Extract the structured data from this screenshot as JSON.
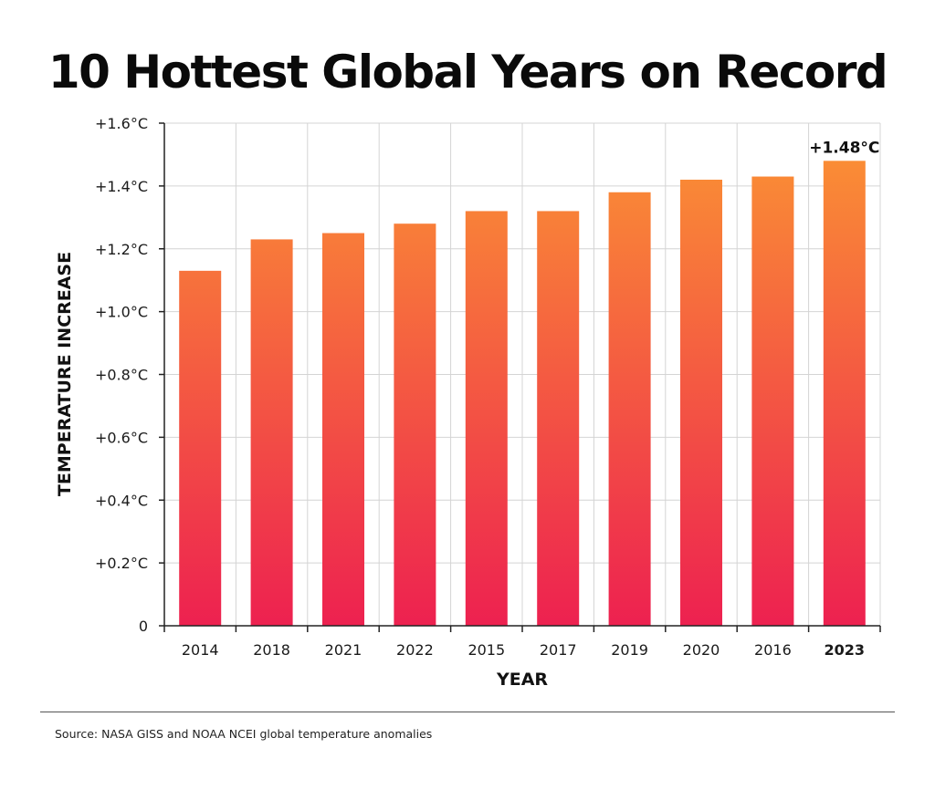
{
  "chart_data": {
    "type": "bar",
    "title": "10 Hottest Global Years on Record",
    "xlabel": "YEAR",
    "ylabel": "TEMPERATURE INCREASE",
    "categories": [
      "2014",
      "2018",
      "2021",
      "2022",
      "2015",
      "2017",
      "2019",
      "2020",
      "2016",
      "2023"
    ],
    "values": [
      1.13,
      1.23,
      1.25,
      1.28,
      1.32,
      1.32,
      1.38,
      1.42,
      1.43,
      1.48
    ],
    "highlight_category": "2023",
    "ylim": [
      0,
      1.6
    ],
    "yticks": [
      0,
      0.2,
      0.4,
      0.6,
      0.8,
      1.0,
      1.2,
      1.4,
      1.6
    ],
    "ytick_labels": [
      "0",
      "+0.2°C",
      "+0.4°C",
      "+0.6°C",
      "+0.8°C",
      "+1.0°C",
      "+1.2°C",
      "+1.4°C",
      "+1.6°C"
    ],
    "annotations": [
      {
        "category": "2023",
        "text": "+1.48°C"
      }
    ],
    "grid": true,
    "bar_gradient": {
      "top": "#fb9533",
      "bottom": "#ed2150"
    }
  },
  "footer": {
    "source": "Source: NASA GISS and NOAA NCEI global temperature anomalies"
  }
}
